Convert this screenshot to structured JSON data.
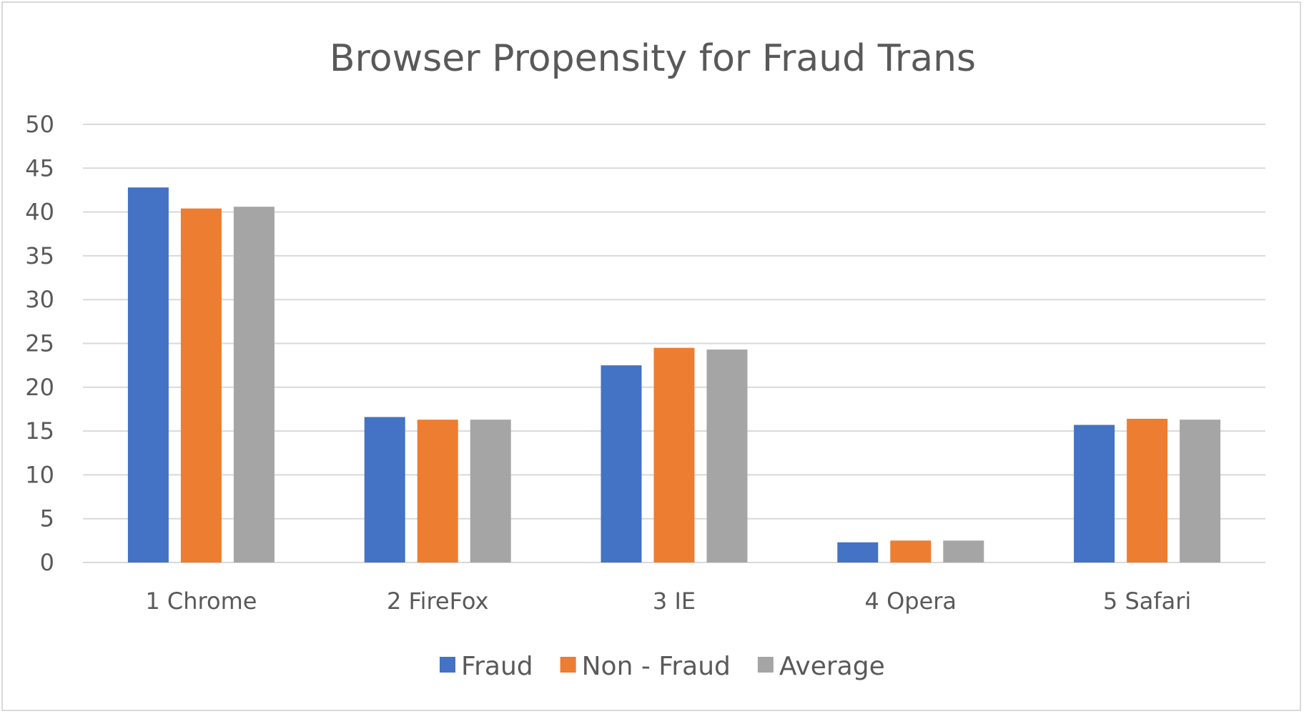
{
  "chart_data": {
    "type": "bar",
    "title": "Browser Propensity for Fraud Trans",
    "xlabel": "",
    "ylabel": "",
    "categories": [
      "1 Chrome",
      "2 FireFox",
      "3 IE",
      "4 Opera",
      "5 Safari"
    ],
    "series": [
      {
        "name": "Fraud",
        "color": "#4472C4",
        "values": [
          42.8,
          16.6,
          22.5,
          2.3,
          15.7
        ]
      },
      {
        "name": "Non - Fraud",
        "color": "#ED7D31",
        "values": [
          40.4,
          16.3,
          24.5,
          2.5,
          16.4
        ]
      },
      {
        "name": "Average",
        "color": "#A5A5A5",
        "values": [
          40.6,
          16.3,
          24.3,
          2.5,
          16.3
        ]
      }
    ],
    "ylim": [
      0,
      50
    ],
    "yticks": [
      "0",
      "5",
      "10",
      "15",
      "20",
      "25",
      "30",
      "35",
      "40",
      "45",
      "50"
    ],
    "grid": true,
    "legend_position": "bottom"
  }
}
